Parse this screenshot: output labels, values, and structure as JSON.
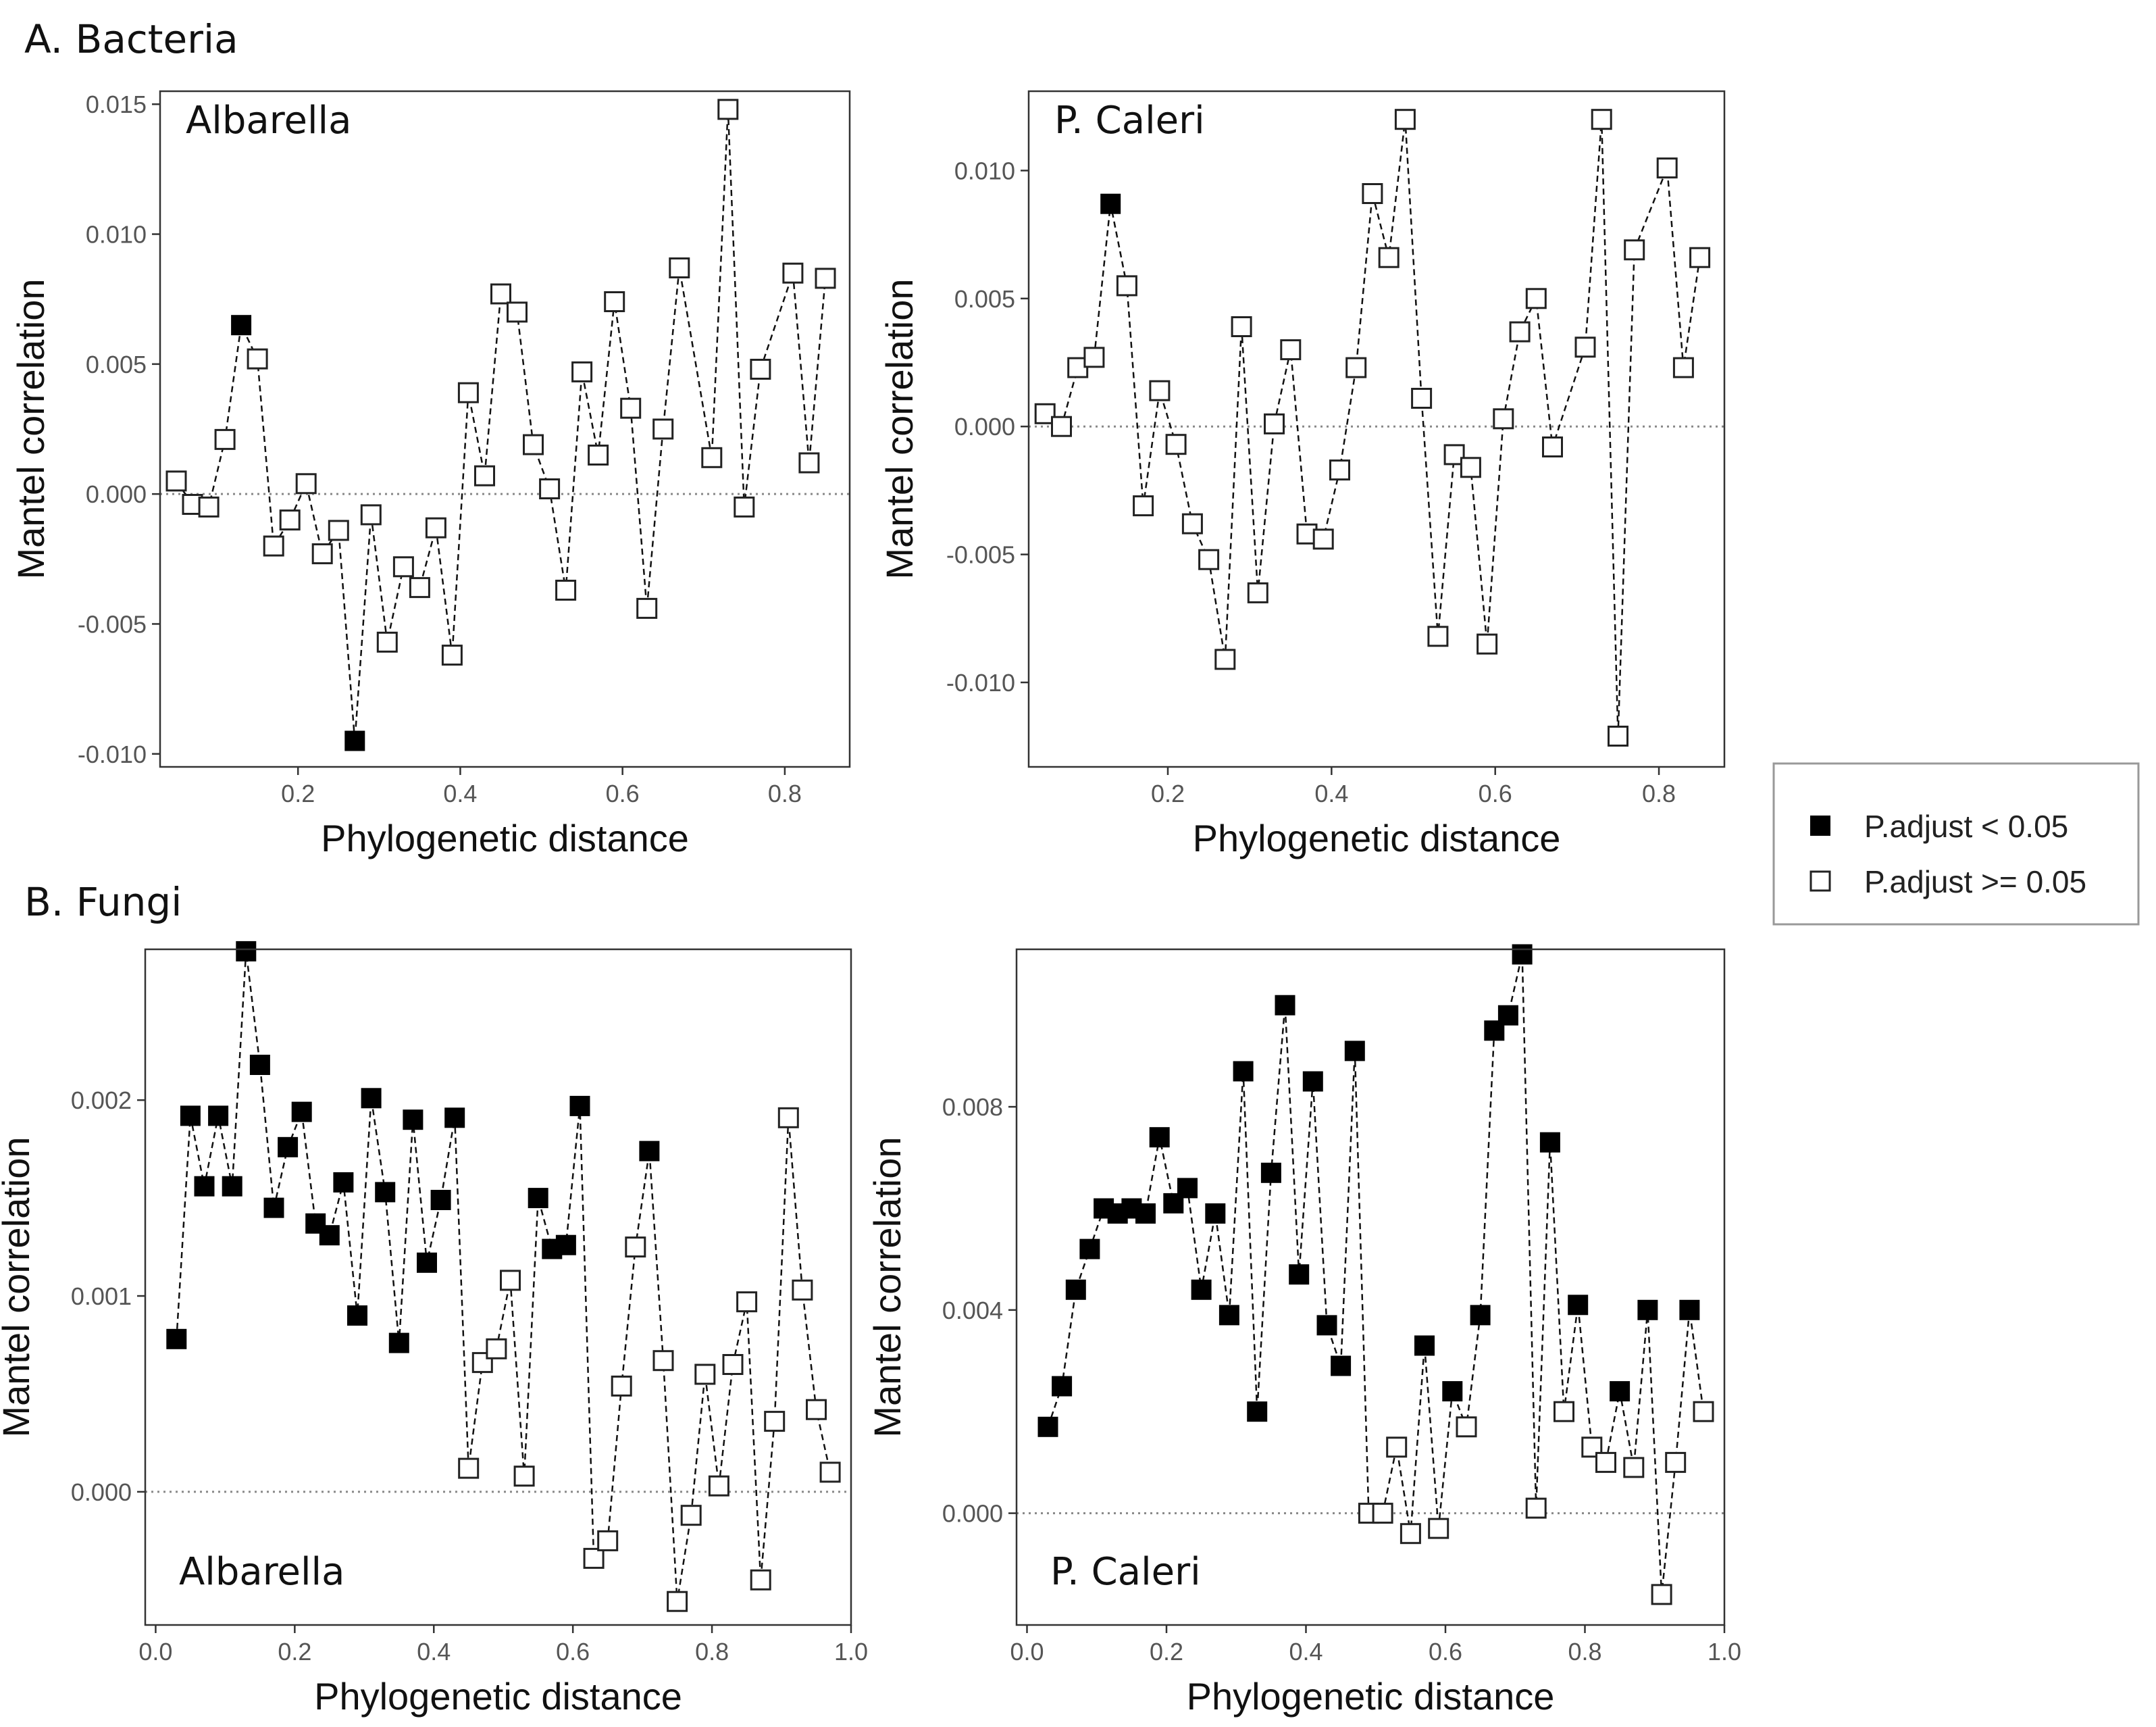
{
  "sections": {
    "bacteria_title": "A. Bacteria",
    "fungi_title": "B. Fungi"
  },
  "legend": {
    "significant_label": "P.adjust < 0.05",
    "not_significant_label": "P.adjust >= 0.05"
  },
  "colors": {
    "significant_fill": "#000000",
    "not_significant_fill": "#ffffff",
    "line": "#111111",
    "reference_line": "#888888"
  },
  "chart_data": [
    {
      "id": "bacteria-albarella",
      "type": "line",
      "section": "A. Bacteria",
      "label": "Albarella",
      "xlabel": "Phylogenetic distance",
      "ylabel": "Mantel correlation",
      "xlim": [
        0.03,
        0.88
      ],
      "ylim": [
        -0.0105,
        0.0155
      ],
      "xticks": [
        0.2,
        0.4,
        0.6,
        0.8
      ],
      "xtick_labels": [
        "0.2",
        "0.4",
        "0.6",
        "0.8"
      ],
      "yticks": [
        -0.01,
        -0.005,
        0,
        0.005,
        0.01,
        0.015
      ],
      "ytick_labels": [
        "-0.010",
        "-0.005",
        "0.000",
        "0.005",
        "0.010",
        "0.015"
      ],
      "reference_line_y": 0,
      "x": [
        0.05,
        0.07,
        0.09,
        0.11,
        0.13,
        0.15,
        0.17,
        0.19,
        0.21,
        0.23,
        0.25,
        0.27,
        0.29,
        0.31,
        0.33,
        0.35,
        0.37,
        0.39,
        0.41,
        0.43,
        0.45,
        0.47,
        0.49,
        0.51,
        0.53,
        0.55,
        0.57,
        0.59,
        0.61,
        0.63,
        0.65,
        0.67,
        0.71,
        0.73,
        0.75,
        0.77,
        0.81,
        0.83,
        0.85
      ],
      "y": [
        0.0005,
        -0.0004,
        -0.0005,
        0.0021,
        0.0065,
        0.0052,
        -0.002,
        -0.001,
        0.0004,
        -0.0023,
        -0.0014,
        -0.0095,
        -0.0008,
        -0.0057,
        -0.0028,
        -0.0036,
        -0.0013,
        -0.0062,
        0.0039,
        0.0007,
        0.0077,
        0.007,
        0.0019,
        0.0002,
        -0.0037,
        0.0047,
        0.0015,
        0.0074,
        0.0033,
        -0.0044,
        0.0025,
        0.0087,
        0.0014,
        0.0148,
        -0.0005,
        0.0048,
        0.0085,
        0.0012,
        0.0083
      ],
      "significant": [
        false,
        false,
        false,
        false,
        true,
        false,
        false,
        false,
        false,
        false,
        false,
        true,
        false,
        false,
        false,
        false,
        false,
        false,
        false,
        false,
        false,
        false,
        false,
        false,
        false,
        false,
        false,
        false,
        false,
        false,
        false,
        false,
        false,
        false,
        false,
        false,
        false,
        false,
        false
      ]
    },
    {
      "id": "bacteria-pcaleri",
      "type": "line",
      "section": "A. Bacteria",
      "label": "P. Caleri",
      "xlabel": "Phylogenetic distance",
      "ylabel": "Mantel correlation",
      "xlim": [
        0.03,
        0.88
      ],
      "ylim": [
        -0.0133,
        0.0131
      ],
      "xticks": [
        0.2,
        0.4,
        0.6,
        0.8
      ],
      "xtick_labels": [
        "0.2",
        "0.4",
        "0.6",
        "0.8"
      ],
      "yticks": [
        -0.01,
        -0.005,
        0,
        0.005,
        0.01
      ],
      "ytick_labels": [
        "-0.010",
        "-0.005",
        "0.000",
        "0.005",
        "0.010"
      ],
      "reference_line_y": 0,
      "x": [
        0.05,
        0.07,
        0.09,
        0.11,
        0.13,
        0.15,
        0.17,
        0.19,
        0.21,
        0.23,
        0.25,
        0.27,
        0.29,
        0.31,
        0.33,
        0.35,
        0.37,
        0.39,
        0.41,
        0.43,
        0.45,
        0.47,
        0.49,
        0.51,
        0.53,
        0.55,
        0.57,
        0.59,
        0.61,
        0.63,
        0.65,
        0.67,
        0.71,
        0.73,
        0.75,
        0.77,
        0.81,
        0.83,
        0.85
      ],
      "y": [
        0.0005,
        0.0,
        0.0023,
        0.0027,
        0.0087,
        0.0055,
        -0.0031,
        0.0014,
        -0.0007,
        -0.0038,
        -0.0052,
        -0.0091,
        0.0039,
        -0.0065,
        0.0001,
        0.003,
        -0.0042,
        -0.0044,
        -0.0017,
        0.0023,
        0.0091,
        0.0066,
        0.012,
        0.0011,
        -0.0082,
        -0.0011,
        -0.0016,
        -0.0085,
        0.0003,
        0.0037,
        0.005,
        -0.0008,
        0.0031,
        0.012,
        -0.0121,
        0.0069,
        0.0101,
        0.0023,
        0.0066
      ],
      "significant": [
        false,
        false,
        false,
        false,
        true,
        false,
        false,
        false,
        false,
        false,
        false,
        false,
        false,
        false,
        false,
        false,
        false,
        false,
        false,
        false,
        false,
        false,
        false,
        false,
        false,
        false,
        false,
        false,
        false,
        false,
        false,
        false,
        false,
        false,
        false,
        false,
        false,
        false,
        false
      ]
    },
    {
      "id": "fungi-albarella",
      "type": "line",
      "section": "B. Fungi",
      "label": "Albarella",
      "xlabel": "Phylogenetic distance",
      "ylabel": "Mantel correlation",
      "xlim": [
        -0.015,
        1.0
      ],
      "ylim": [
        -0.00068,
        0.00277
      ],
      "xticks": [
        0.0,
        0.2,
        0.4,
        0.6,
        0.8,
        1.0
      ],
      "xtick_labels": [
        "0.0",
        "0.2",
        "0.4",
        "0.6",
        "0.8",
        "1.0"
      ],
      "yticks": [
        0,
        0.001,
        0.002
      ],
      "ytick_labels": [
        "0.000",
        "0.001",
        "0.002"
      ],
      "reference_line_y": 0,
      "x": [
        0.03,
        0.05,
        0.07,
        0.09,
        0.11,
        0.13,
        0.15,
        0.17,
        0.19,
        0.21,
        0.23,
        0.25,
        0.27,
        0.29,
        0.31,
        0.33,
        0.35,
        0.37,
        0.39,
        0.41,
        0.43,
        0.45,
        0.47,
        0.49,
        0.51,
        0.53,
        0.55,
        0.57,
        0.59,
        0.61,
        0.63,
        0.65,
        0.67,
        0.69,
        0.71,
        0.73,
        0.75,
        0.77,
        0.79,
        0.81,
        0.83,
        0.85,
        0.87,
        0.89,
        0.91,
        0.93,
        0.95,
        0.97
      ],
      "y": [
        0.00078,
        0.00192,
        0.00156,
        0.00192,
        0.00156,
        0.00276,
        0.00218,
        0.00145,
        0.00176,
        0.00194,
        0.00137,
        0.00131,
        0.00158,
        0.0009,
        0.00201,
        0.00153,
        0.00076,
        0.0019,
        0.00117,
        0.00149,
        0.00191,
        0.00012,
        0.00066,
        0.00073,
        0.00108,
        8e-05,
        0.0015,
        0.00124,
        0.00126,
        0.00197,
        -0.00034,
        -0.00025,
        0.00054,
        0.00125,
        0.00174,
        0.00067,
        -0.00056,
        -0.00012,
        0.0006,
        3e-05,
        0.00065,
        0.00097,
        -0.00045,
        0.00036,
        0.00191,
        0.00103,
        0.00042,
        0.0001
      ],
      "significant": [
        true,
        true,
        true,
        true,
        true,
        true,
        true,
        true,
        true,
        true,
        true,
        true,
        true,
        true,
        true,
        true,
        true,
        true,
        true,
        true,
        true,
        false,
        false,
        false,
        false,
        false,
        true,
        true,
        true,
        true,
        false,
        false,
        false,
        false,
        true,
        false,
        false,
        false,
        false,
        false,
        false,
        false,
        false,
        false,
        false,
        false,
        false,
        false
      ]
    },
    {
      "id": "fungi-pcaleri",
      "type": "line",
      "section": "B. Fungi",
      "label": "P. Caleri",
      "xlabel": "Phylogenetic distance",
      "ylabel": "Mantel correlation",
      "xlim": [
        -0.015,
        1.0
      ],
      "ylim": [
        -0.0022,
        0.0111
      ],
      "xticks": [
        0.0,
        0.2,
        0.4,
        0.6,
        0.8,
        1.0
      ],
      "xtick_labels": [
        "0.0",
        "0.2",
        "0.4",
        "0.6",
        "0.8",
        "1.0"
      ],
      "yticks": [
        0,
        0.004,
        0.008
      ],
      "ytick_labels": [
        "0.000",
        "0.004",
        "0.008"
      ],
      "reference_line_y": 0,
      "x": [
        0.03,
        0.05,
        0.07,
        0.09,
        0.11,
        0.13,
        0.15,
        0.17,
        0.19,
        0.21,
        0.23,
        0.25,
        0.27,
        0.29,
        0.31,
        0.33,
        0.35,
        0.37,
        0.39,
        0.41,
        0.43,
        0.45,
        0.47,
        0.49,
        0.51,
        0.53,
        0.55,
        0.57,
        0.59,
        0.61,
        0.63,
        0.65,
        0.67,
        0.69,
        0.71,
        0.73,
        0.75,
        0.77,
        0.79,
        0.81,
        0.83,
        0.85,
        0.87,
        0.89,
        0.91,
        0.93,
        0.95,
        0.97
      ],
      "y": [
        0.0017,
        0.0025,
        0.0044,
        0.0052,
        0.006,
        0.0059,
        0.006,
        0.0059,
        0.0074,
        0.0061,
        0.0064,
        0.0044,
        0.0059,
        0.0039,
        0.0087,
        0.002,
        0.0067,
        0.01,
        0.0047,
        0.0085,
        0.0037,
        0.0029,
        0.0091,
        0.0,
        0.0,
        0.0013,
        -0.0004,
        0.0033,
        -0.0003,
        0.0024,
        0.0017,
        0.0039,
        0.0095,
        0.0098,
        0.011,
        0.0001,
        0.0073,
        0.002,
        0.0041,
        0.0013,
        0.001,
        0.0024,
        0.0009,
        0.004,
        -0.0016,
        0.001,
        0.004,
        0.002
      ],
      "significant": [
        true,
        true,
        true,
        true,
        true,
        true,
        true,
        true,
        true,
        true,
        true,
        true,
        true,
        true,
        true,
        true,
        true,
        true,
        true,
        true,
        true,
        true,
        true,
        false,
        false,
        false,
        false,
        true,
        false,
        true,
        false,
        true,
        true,
        true,
        true,
        false,
        true,
        false,
        true,
        false,
        false,
        true,
        false,
        true,
        false,
        false,
        true,
        false
      ]
    }
  ]
}
